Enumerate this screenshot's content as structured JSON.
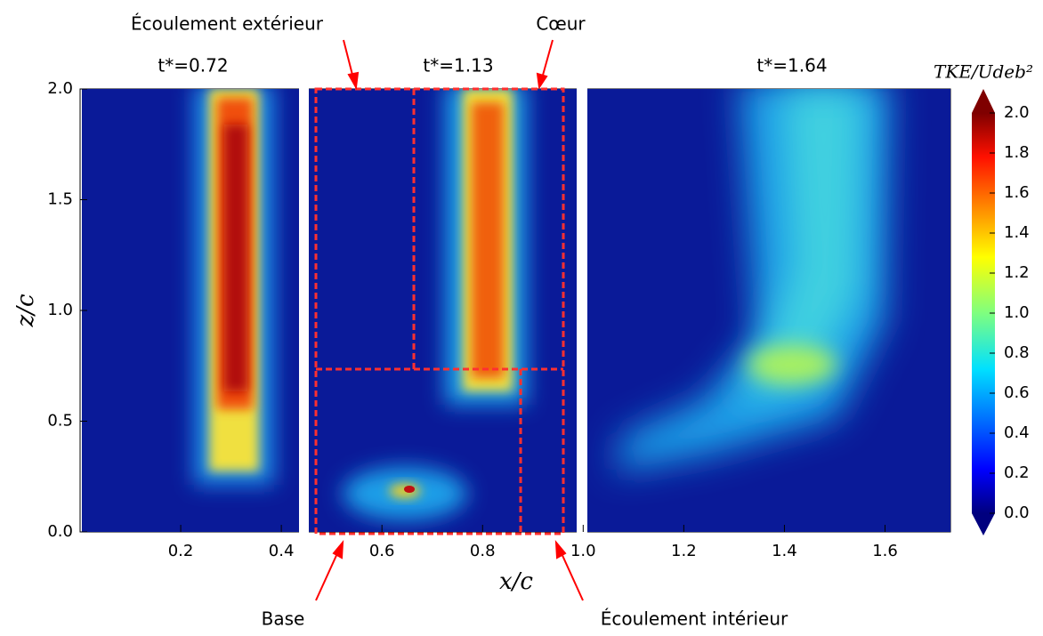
{
  "chart_data": {
    "type": "heatmap",
    "xlabel": "x/c",
    "ylabel": "z/c",
    "xlim": [
      0,
      1.73
    ],
    "ylim": [
      0,
      2
    ],
    "xticks": [
      0.2,
      0.4,
      0.6,
      0.8,
      {
        "value": 1,
        "label": "1.0"
      },
      1.2,
      1.4,
      1.6
    ],
    "yticks": [
      {
        "value": 0,
        "label": "0.0"
      },
      0.5,
      {
        "value": 1,
        "label": "1.0"
      },
      1.5,
      {
        "value": 2,
        "label": "2.0"
      }
    ],
    "panels": [
      {
        "title": "t*=0.72"
      },
      {
        "title": "t*=1.13"
      },
      {
        "title": "t*=1.64"
      }
    ],
    "colorbar": {
      "label": "TKE/Udeb²",
      "lim": [
        0,
        2
      ],
      "ticks": [
        {
          "value": 0,
          "label": "0.0"
        },
        0.2,
        0.4,
        0.6,
        0.8,
        {
          "value": 1,
          "label": "1.0"
        },
        1.2,
        1.4,
        1.6,
        1.8,
        {
          "value": 2,
          "label": "2.0"
        }
      ]
    },
    "annotations": [
      "Écoulement extérieur",
      "Cœur",
      "Base",
      "Écoulement intérieur"
    ]
  }
}
